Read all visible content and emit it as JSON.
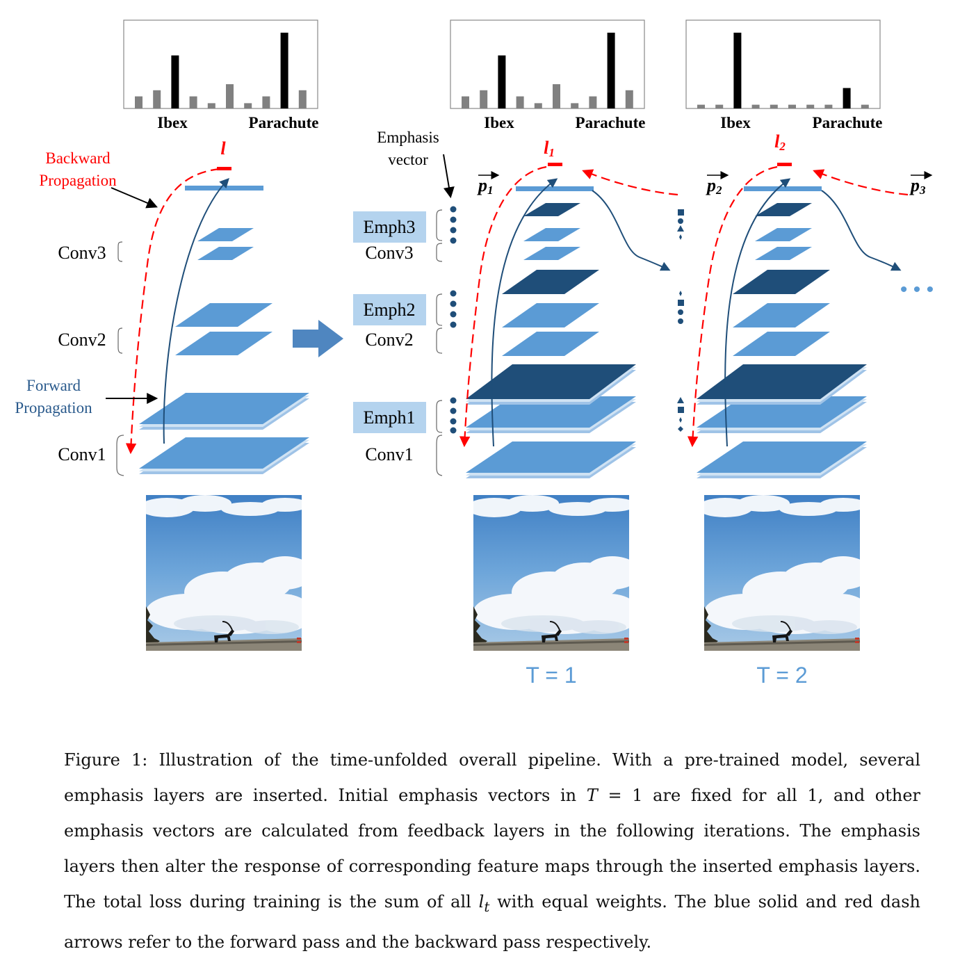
{
  "colors": {
    "layer_light": "#5b9bd5",
    "layer_dark": "#1f4e79",
    "forward_arrow": "#1f4e79",
    "backward_arrow": "#ff0000",
    "emph_box": "#b4d3ee",
    "time_label": "#5b9bd5",
    "bar_black": "#000000",
    "bar_gray": "#808080"
  },
  "histograms": {
    "class_labels": [
      "Ibex",
      "Parachute"
    ],
    "panel_1": [
      0.16,
      0.24,
      0.7,
      0.16,
      0.07,
      0.32,
      0.07,
      0.16,
      1.0,
      0.24
    ],
    "panel_2": [
      0.16,
      0.24,
      0.7,
      0.16,
      0.07,
      0.32,
      0.07,
      0.16,
      1.0,
      0.24
    ],
    "panel_3": [
      0.05,
      0.05,
      1.0,
      0.05,
      0.05,
      0.05,
      0.05,
      0.05,
      0.27,
      0.05
    ]
  },
  "labels": {
    "backward_line1": "Backward",
    "backward_line2": "Propagation",
    "forward_line1": "Forward",
    "forward_line2": "Propagation",
    "emphasis_line1": "Emphasis",
    "emphasis_line2": "vector",
    "loss": "l",
    "loss1_base": "l",
    "loss1_sub": "1",
    "loss2_base": "l",
    "loss2_sub": "2",
    "p1_base": "p",
    "p1_sub": "1",
    "p2_base": "p",
    "p2_sub": "2",
    "p3_base": "p",
    "p3_sub": "3",
    "conv1": "Conv1",
    "conv2": "Conv2",
    "conv3": "Conv3",
    "emph1": "Emph1",
    "emph2": "Emph2",
    "emph3": "Emph3",
    "t1": "T = 1",
    "t2": "T = 2",
    "ellipsis": "• • •"
  },
  "caption": {
    "p1": "Figure 1: Illustration of the time-unfolded overall pipeline. With a pre-trained model, several emphasis layers are inserted. Initial emphasis vectors in ",
    "math1": "T",
    "p2": " = 1 are fixed for all 1, and other emphasis vectors are calculated from feedback layers in the following iterations. The emphasis layers then alter the response of corresponding feature maps through the inserted emphasis layers. The total loss during training is the sum of all ",
    "math2_base": "l",
    "math2_sub": "t",
    "p3": " with equal weights. The blue solid and red dash arrows refer to the forward pass and the backward pass respectively."
  }
}
